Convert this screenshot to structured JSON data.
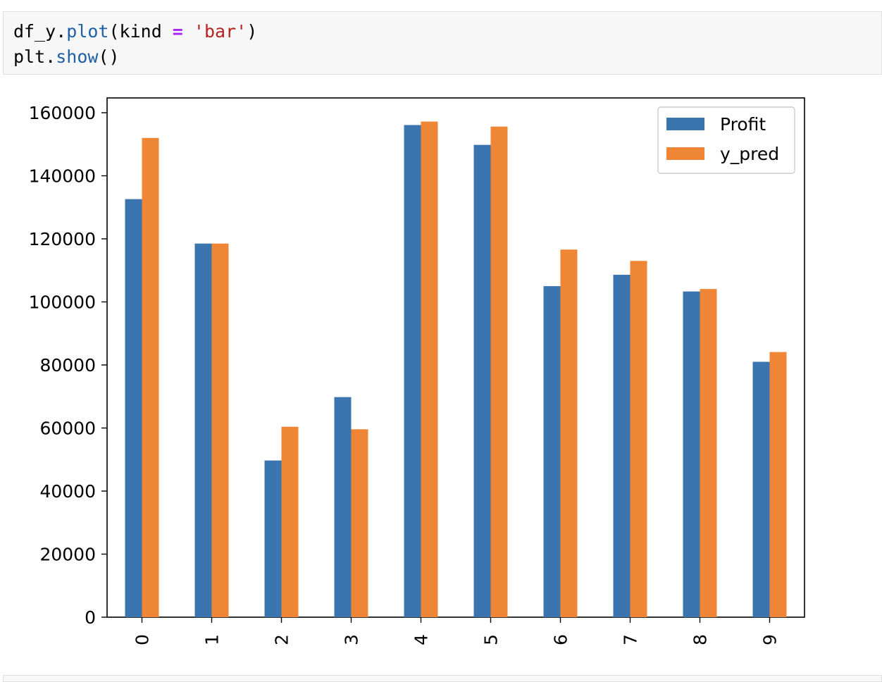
{
  "code_cell": {
    "lines": [
      [
        {
          "text": "df_y.",
          "kind": "plain"
        },
        {
          "text": "plot",
          "kind": "fn"
        },
        {
          "text": "(kind ",
          "kind": "plain"
        },
        {
          "text": "=",
          "kind": "op"
        },
        {
          "text": " ",
          "kind": "plain"
        },
        {
          "text": "'bar'",
          "kind": "str"
        },
        {
          "text": ")",
          "kind": "plain"
        }
      ],
      [
        {
          "text": "plt.",
          "kind": "plain"
        },
        {
          "text": "show",
          "kind": "fn"
        },
        {
          "text": "()",
          "kind": "plain"
        }
      ]
    ]
  },
  "chart_data": {
    "type": "bar",
    "categories": [
      "0",
      "1",
      "2",
      "3",
      "4",
      "5",
      "6",
      "7",
      "8",
      "9"
    ],
    "series": [
      {
        "name": "Profit",
        "color": "#3b75af",
        "values": [
          132600,
          118500,
          49700,
          69800,
          156100,
          149800,
          105000,
          108600,
          103300,
          81000
        ]
      },
      {
        "name": "y_pred",
        "color": "#ef8636",
        "values": [
          152000,
          118500,
          60400,
          59600,
          157200,
          155600,
          116600,
          113000,
          104100,
          84100
        ]
      }
    ],
    "ylim": [
      0,
      160000
    ],
    "yticks": [
      0,
      20000,
      40000,
      60000,
      80000,
      100000,
      120000,
      140000,
      160000
    ],
    "ytick_labels": [
      "0",
      "20000",
      "40000",
      "60000",
      "80000",
      "100000",
      "120000",
      "140000",
      "160000"
    ],
    "xtick_rotation": 90,
    "legend_position": "top-right",
    "grid": false,
    "title": "",
    "xlabel": "",
    "ylabel": ""
  }
}
